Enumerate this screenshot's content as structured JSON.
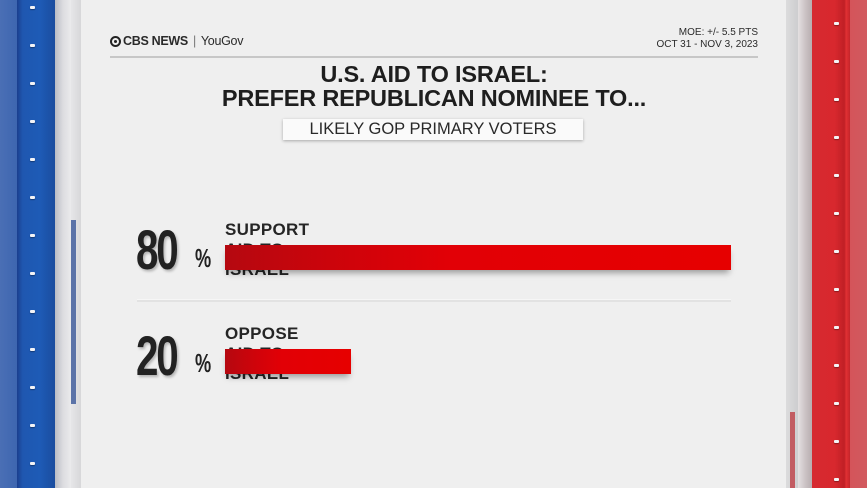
{
  "header": {
    "brand_primary": "CBS NEWS",
    "brand_separator": "|",
    "brand_secondary": "YouGov",
    "moe": "MOE: +/- 5.5 PTS",
    "dates": "OCT 31 - NOV 3, 2023"
  },
  "title": {
    "line1": "U.S. AID TO ISRAEL:",
    "line2": "PREFER REPUBLICAN NOMINEE TO..."
  },
  "subtitle": "LIKELY GOP PRIMARY VOTERS",
  "colors": {
    "bar": "#e60000",
    "left_pillar": "#1e5bb6",
    "right_pillar": "#d8282e",
    "background": "#efefef",
    "text": "#222222"
  },
  "rows": [
    {
      "value": "80",
      "pct_sign": "%",
      "label": "SUPPORT AID TO ISRAEL"
    },
    {
      "value": "20",
      "pct_sign": "%",
      "label": "OPPOSE AID TO ISRAEL"
    }
  ],
  "chart_data": {
    "type": "bar",
    "orientation": "horizontal",
    "title": "U.S. AID TO ISRAEL: PREFER REPUBLICAN NOMINEE TO...",
    "subtitle": "LIKELY GOP PRIMARY VOTERS",
    "categories": [
      "SUPPORT AID TO ISRAEL",
      "OPPOSE AID TO ISRAEL"
    ],
    "values": [
      80,
      20
    ],
    "unit": "%",
    "xlabel": "",
    "ylabel": "",
    "xlim": [
      0,
      80
    ],
    "grid": false,
    "legend": null,
    "annotations": [
      "MOE: +/- 5.5 PTS",
      "OCT 31 - NOV 3, 2023"
    ],
    "source": "CBS NEWS | YouGov"
  }
}
